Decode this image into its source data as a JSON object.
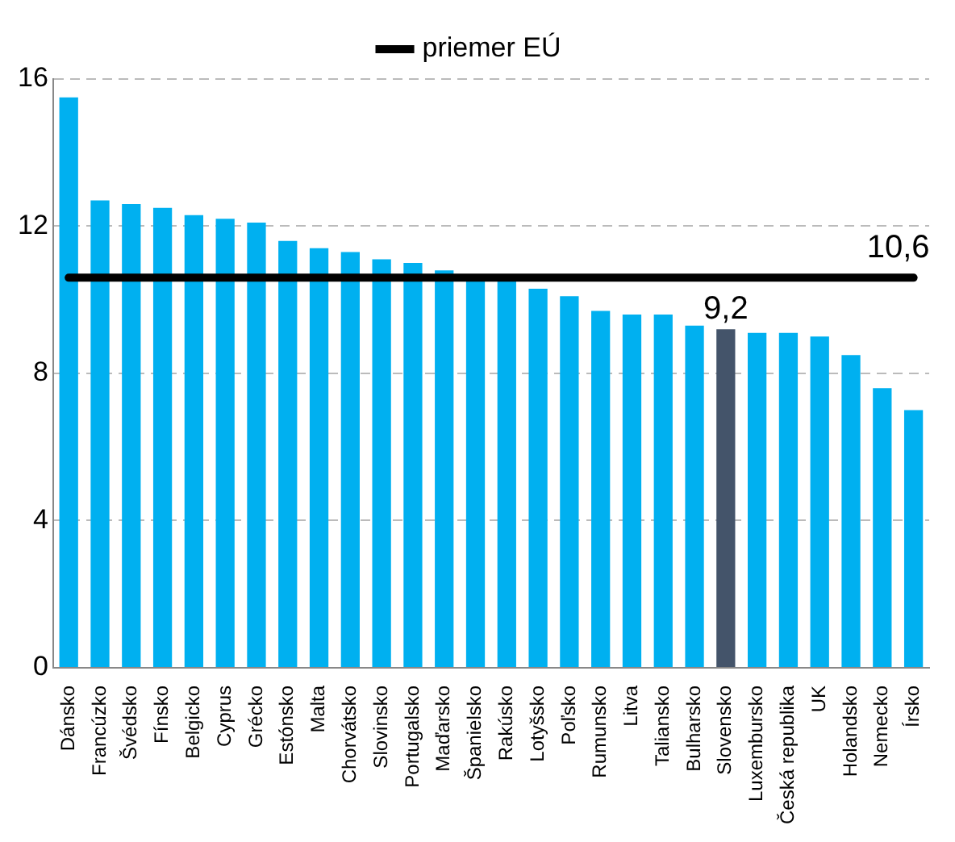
{
  "chart_data": {
    "type": "bar",
    "categories": [
      "Dánsko",
      "Francúzko",
      "Švédsko",
      "Fínsko",
      "Belgicko",
      "Cyprus",
      "Grécko",
      "Estónsko",
      "Malta",
      "Chorvátsko",
      "Slovinsko",
      "Portugalsko",
      "Maďarsko",
      "Španielsko",
      "Rakúsko",
      "Lotyšsko",
      "Poľsko",
      "Rumunsko",
      "Litva",
      "Taliansko",
      "Bulharsko",
      "Slovensko",
      "Luxembursko",
      "Česká republika",
      "UK",
      "Holandsko",
      "Nemecko",
      "Írsko"
    ],
    "series": [
      {
        "colors": [
          "#00b0f0",
          "#00b0f0",
          "#00b0f0",
          "#00b0f0",
          "#00b0f0",
          "#00b0f0",
          "#00b0f0",
          "#00b0f0",
          "#00b0f0",
          "#00b0f0",
          "#00b0f0",
          "#00b0f0",
          "#00b0f0",
          "#00b0f0",
          "#00b0f0",
          "#00b0f0",
          "#00b0f0",
          "#00b0f0",
          "#00b0f0",
          "#00b0f0",
          "#00b0f0",
          "#44546a",
          "#00b0f0",
          "#00b0f0",
          "#00b0f0",
          "#00b0f0",
          "#00b0f0",
          "#00b0f0"
        ],
        "values": [
          15.5,
          12.7,
          12.6,
          12.5,
          12.3,
          12.2,
          12.1,
          11.6,
          11.4,
          11.3,
          11.1,
          11.0,
          10.8,
          10.6,
          10.5,
          10.3,
          10.1,
          9.7,
          9.6,
          9.6,
          9.3,
          9.2,
          9.1,
          9.1,
          9.0,
          8.5,
          7.6,
          7.0
        ],
        "value_labels": [
          null,
          null,
          null,
          null,
          null,
          null,
          null,
          null,
          null,
          null,
          null,
          null,
          null,
          null,
          null,
          null,
          null,
          null,
          null,
          null,
          null,
          "9,2",
          null,
          null,
          null,
          null,
          null,
          null
        ]
      },
      {
        "type": "line",
        "name": "priemer EÚ",
        "color": "#000000",
        "values": [
          10.6,
          10.6,
          10.6,
          10.6,
          10.6,
          10.6,
          10.6,
          10.6,
          10.6,
          10.6,
          10.6,
          10.6,
          10.6,
          10.6,
          10.6,
          10.6,
          10.6,
          10.6,
          10.6,
          10.6,
          10.6,
          10.6,
          10.6,
          10.6,
          10.6,
          10.6,
          10.6,
          10.6
        ],
        "value_labels": [
          null,
          null,
          null,
          null,
          null,
          null,
          null,
          null,
          null,
          null,
          null,
          null,
          null,
          null,
          null,
          null,
          null,
          null,
          null,
          null,
          null,
          null,
          null,
          null,
          null,
          null,
          null,
          "10,6"
        ]
      }
    ],
    "ylim": [
      0,
      16
    ],
    "yticks": [
      0,
      4,
      8,
      12,
      16
    ],
    "grid": "y",
    "legend": "top",
    "marker": "none"
  }
}
